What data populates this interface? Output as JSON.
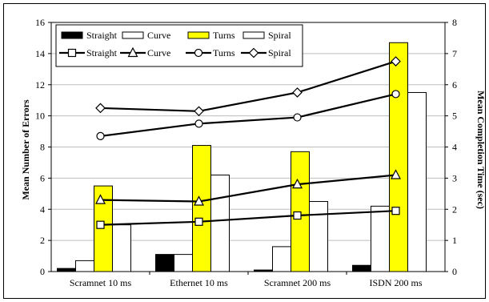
{
  "chart_data": {
    "type": "bar+line",
    "categories": [
      "Scramnet 10 ms",
      "Ethernet 10 ms",
      "Scramnet 200 ms",
      "ISDN 200 ms"
    ],
    "ylabel_left": "Mean Number of Errors",
    "ylabel_right": "Mean Completion Time (sec)",
    "ylim_left": [
      0,
      16
    ],
    "yticks_left": [
      0,
      2,
      4,
      6,
      8,
      10,
      12,
      14,
      16
    ],
    "ylim_right": [
      0,
      8
    ],
    "yticks_right": [
      0,
      1,
      2,
      3,
      4,
      5,
      6,
      7,
      8
    ],
    "bar_series": [
      {
        "name": "Straight",
        "values": [
          0.2,
          1.1,
          0.1,
          0.4
        ],
        "fill": "#000000"
      },
      {
        "name": "Curve",
        "values": [
          0.7,
          1.1,
          1.6,
          4.2
        ],
        "fill": "#ffffff"
      },
      {
        "name": "Turns",
        "values": [
          5.5,
          8.1,
          7.7,
          14.7
        ],
        "fill": "#ffff00"
      },
      {
        "name": "Spiral",
        "values": [
          3.0,
          6.2,
          4.5,
          11.5
        ],
        "fill": "#ffffff"
      }
    ],
    "line_series": [
      {
        "name": "Straight",
        "marker": "square",
        "values": [
          1.5,
          1.6,
          1.8,
          1.95
        ]
      },
      {
        "name": "Curve",
        "marker": "triangle",
        "values": [
          2.3,
          2.25,
          2.8,
          3.1
        ]
      },
      {
        "name": "Turns",
        "marker": "circle",
        "values": [
          4.35,
          4.75,
          4.95,
          5.7
        ]
      },
      {
        "name": "Spiral",
        "marker": "diamond",
        "values": [
          5.25,
          5.15,
          5.75,
          6.75
        ]
      }
    ],
    "grid": true,
    "legend_position": "top-left"
  }
}
